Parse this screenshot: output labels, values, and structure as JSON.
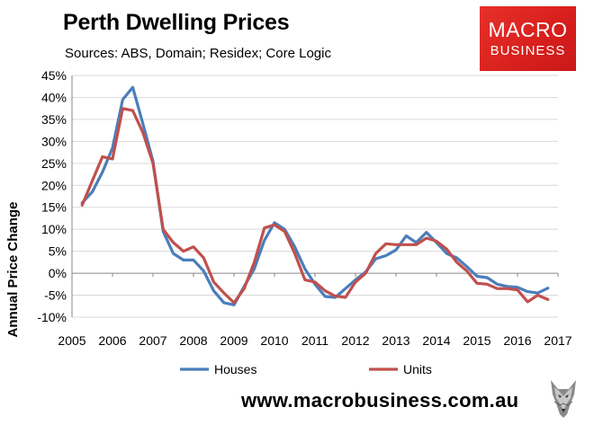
{
  "header": {
    "title": "Perth Dwelling Prices",
    "subtitle": "Sources: ABS, Domain; Residex; Core Logic"
  },
  "logo": {
    "line1": "MACRO",
    "line2": "BUSINESS",
    "color": "#d71f1c"
  },
  "footer": {
    "url": "www.macrobusiness.com.au",
    "mascot_icon": "wolf-head-icon"
  },
  "chart_data": {
    "type": "line",
    "title": "Perth Dwelling Prices",
    "ylabel": "Annual Price Change",
    "xlabel": "",
    "xlim": [
      2005,
      2017
    ],
    "ylim": [
      -10,
      45
    ],
    "x_ticks": [
      "2005",
      "2006",
      "2007",
      "2008",
      "2009",
      "2010",
      "2011",
      "2012",
      "2013",
      "2014",
      "2015",
      "2016",
      "2017"
    ],
    "y_ticks": [
      "-10%",
      "-5%",
      "0%",
      "5%",
      "10%",
      "15%",
      "20%",
      "25%",
      "30%",
      "35%",
      "40%",
      "45%"
    ],
    "grid": "horizontal",
    "legend": "bottom",
    "series": [
      {
        "name": "Houses",
        "color": "#4a7ebb",
        "x": [
          2005.25,
          2005.5,
          2005.75,
          2006.0,
          2006.25,
          2006.5,
          2006.75,
          2007.0,
          2007.25,
          2007.5,
          2007.75,
          2008.0,
          2008.25,
          2008.5,
          2008.75,
          2009.0,
          2009.25,
          2009.5,
          2009.75,
          2010.0,
          2010.25,
          2010.5,
          2010.75,
          2011.0,
          2011.25,
          2011.5,
          2011.75,
          2012.0,
          2012.25,
          2012.5,
          2012.75,
          2013.0,
          2013.25,
          2013.5,
          2013.75,
          2014.0,
          2014.25,
          2014.5,
          2014.75,
          2015.0,
          2015.25,
          2015.5,
          2015.75,
          2016.0,
          2016.25,
          2016.5,
          2016.75
        ],
        "values": [
          16,
          18.5,
          23,
          28.5,
          39.5,
          42.3,
          34,
          25.5,
          9.5,
          4.5,
          3,
          3,
          0.5,
          -4,
          -6.7,
          -7.2,
          -3,
          1,
          7.5,
          11.5,
          10,
          6,
          1,
          -2.5,
          -5.3,
          -5.5,
          -3.5,
          -1.5,
          0.3,
          3.3,
          4,
          5.3,
          8.5,
          7,
          9.3,
          7,
          4.5,
          3.5,
          1.5,
          -0.7,
          -1,
          -2.5,
          -3,
          -3.2,
          -4.2,
          -4.5,
          -3.4
        ]
      },
      {
        "name": "Units",
        "color": "#c0504d",
        "x": [
          2005.25,
          2005.5,
          2005.75,
          2006.0,
          2006.25,
          2006.5,
          2006.75,
          2007.0,
          2007.25,
          2007.5,
          2007.75,
          2008.0,
          2008.25,
          2008.5,
          2008.75,
          2009.0,
          2009.25,
          2009.5,
          2009.75,
          2010.0,
          2010.25,
          2010.5,
          2010.75,
          2011.0,
          2011.25,
          2011.5,
          2011.75,
          2012.0,
          2012.25,
          2012.5,
          2012.75,
          2013.0,
          2013.25,
          2013.5,
          2013.75,
          2014.0,
          2014.25,
          2014.5,
          2014.75,
          2015.0,
          2015.25,
          2015.5,
          2015.75,
          2016.0,
          2016.25,
          2016.5,
          2016.75
        ],
        "values": [
          15.5,
          21,
          26.5,
          26,
          37.5,
          37,
          32,
          25,
          10,
          7,
          5,
          6,
          3.5,
          -2,
          -4.5,
          -6.7,
          -3.5,
          2.5,
          10.3,
          11,
          9.5,
          4.5,
          -1.5,
          -2,
          -4,
          -5.2,
          -5.5,
          -2,
          0,
          4.5,
          6.7,
          6.5,
          6.5,
          6.5,
          8,
          7.3,
          5.5,
          2.5,
          0.5,
          -2.3,
          -2.5,
          -3.5,
          -3.5,
          -3.8,
          -6.5,
          -5,
          -6
        ]
      }
    ]
  }
}
